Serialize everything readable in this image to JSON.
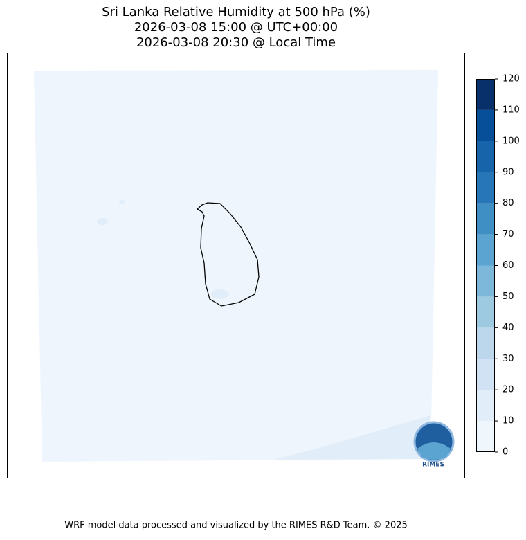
{
  "title": [
    "Sri Lanka Relative Humidity at 500 hPa (%)",
    "2026-03-08 15:00 @ UTC+00:00",
    "2026-03-08 20:30 @ Local Time"
  ],
  "colorbar": {
    "ticks": [
      0,
      10,
      20,
      30,
      40,
      50,
      60,
      70,
      80,
      90,
      100,
      110,
      120
    ],
    "colors": [
      "#eff6fc",
      "#e1edf8",
      "#d0e2f3",
      "#bcd7eb",
      "#9ecae1",
      "#7db8da",
      "#5ba3d0",
      "#3f8fc5",
      "#2777b8",
      "#1764ab",
      "#084f99",
      "#08306b"
    ]
  },
  "logo": "RIMES",
  "footer": "WRF model data processed and visualized by the RIMES R&D Team. © 2025"
}
